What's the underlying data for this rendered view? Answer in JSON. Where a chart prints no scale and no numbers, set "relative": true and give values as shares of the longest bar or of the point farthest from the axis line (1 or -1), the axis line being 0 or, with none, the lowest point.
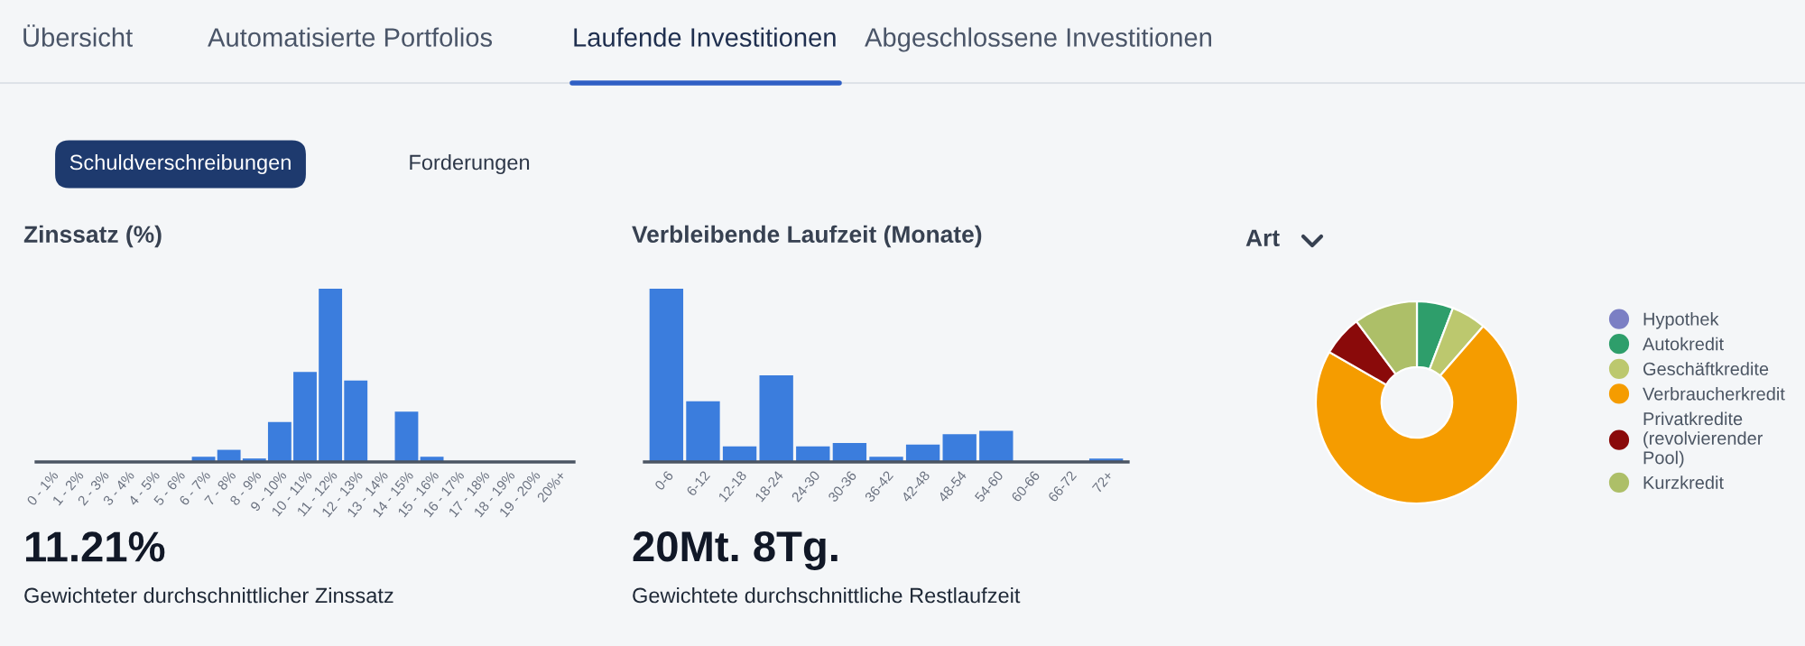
{
  "chart_data": [
    {
      "type": "other",
      "annotations": [
        "Übersicht",
        "Automatisierte Portfolios",
        "Laufende Investitionen",
        "Abgeschlossene Investitionen",
        "Schuldverschreibungen",
        "Forderungen"
      ]
    },
    {
      "type": "bar",
      "title": "Zinssatz (%)",
      "relative": true,
      "color": "#3b7ddd",
      "categories": [
        "0 - 1%",
        "1 - 2%",
        "2 - 3%",
        "3 - 4%",
        "4 - 5%",
        "5 - 6%",
        "6 - 7%",
        "7 - 8%",
        "8 - 9%",
        "9 - 10%",
        "10 - 11%",
        "11 - 12%",
        "12 - 13%",
        "13 - 14%",
        "14 - 15%",
        "15 - 16%",
        "16 - 17%",
        "17 - 18%",
        "18 - 19%",
        "19 - 20%",
        "20%+"
      ],
      "values": [
        0,
        0,
        0,
        0,
        0,
        0,
        0.03,
        0.07,
        0.02,
        0.23,
        0.52,
        1,
        0.47,
        0,
        0.29,
        0.03,
        0,
        0,
        0,
        0,
        0
      ],
      "annotations": [
        "11.21%",
        "Gewichteter durchschnittlicher Zinssatz"
      ]
    },
    {
      "type": "bar",
      "title": "Verbleibende Laufzeit (Monate)",
      "relative": true,
      "color": "#3b7ddd",
      "categories": [
        "0-6",
        "6-12",
        "12-18",
        "18-24",
        "24-30",
        "30-36",
        "36-42",
        "42-48",
        "48-54",
        "54-60",
        "60-66",
        "66-72",
        "72+"
      ],
      "values": [
        1,
        0.35,
        0.09,
        0.5,
        0.09,
        0.11,
        0.03,
        0.1,
        0.16,
        0.18,
        0,
        0,
        0.02
      ],
      "annotations": [
        "20Mt. 8Tg.",
        "Gewichtete durchschnittliche Restlaufzeit"
      ]
    },
    {
      "type": "donut",
      "title": "Art",
      "legend": "right",
      "categories": [
        "Hypothek",
        "Autokredit",
        "Geschäftkredite",
        "Verbraucherkredit",
        "Privatkredite\n(revolvierender\nPool)",
        "Kurzkredit"
      ],
      "values": [
        0,
        5.8,
        5.6,
        71.9,
        6.5,
        10.2
      ],
      "colors": [
        "#7b7fc4",
        "#2e9e6b",
        "#bcc86e",
        "#f59c00",
        "#8a0a0a",
        "#adbf68"
      ]
    }
  ]
}
